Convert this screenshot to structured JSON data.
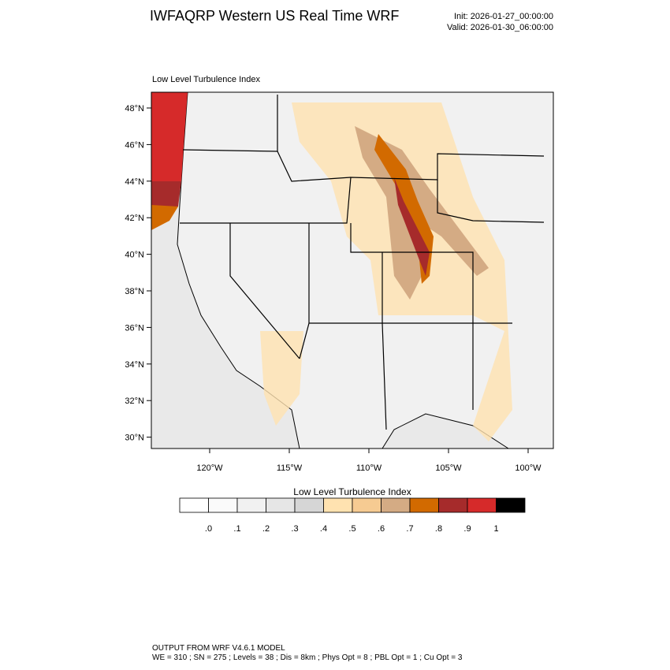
{
  "header": {
    "title": "IWFAQRP Western US Real Time WRF",
    "init": "Init: 2026-01-27_00:00:00",
    "valid": "Valid: 2026-01-30_06:00:00"
  },
  "map": {
    "subtitle": "Low Level Turbulence Index",
    "lat_labels": [
      "48°N",
      "46°N",
      "44°N",
      "42°N",
      "40°N",
      "38°N",
      "36°N",
      "34°N",
      "32°N",
      "30°N"
    ],
    "lon_labels": [
      "120°W",
      "115°W",
      "110°W",
      "105°W",
      "100°W"
    ]
  },
  "colorbar": {
    "title": "Low Level Turbulence Index",
    "labels": [
      ".0",
      ".1",
      ".2",
      ".3",
      ".4",
      ".5",
      ".6",
      ".7",
      ".8",
      ".9",
      "1"
    ],
    "colors": [
      "#ffffff",
      "#fafafa",
      "#f1f1f1",
      "#e6e6e6",
      "#d6d6d6",
      "#ffe2b0",
      "#f6cb92",
      "#d4ab84",
      "#d26a00",
      "#a62b2b",
      "#d62a2a",
      "#000000"
    ]
  },
  "footer": {
    "line1": "OUTPUT FROM WRF V4.6.1 MODEL",
    "line2": "WE = 310 ; SN = 275 ; Levels = 38 ; Dis = 8km ; Phys Opt = 8 ; PBL Opt = 1 ; Cu Opt = 3"
  }
}
